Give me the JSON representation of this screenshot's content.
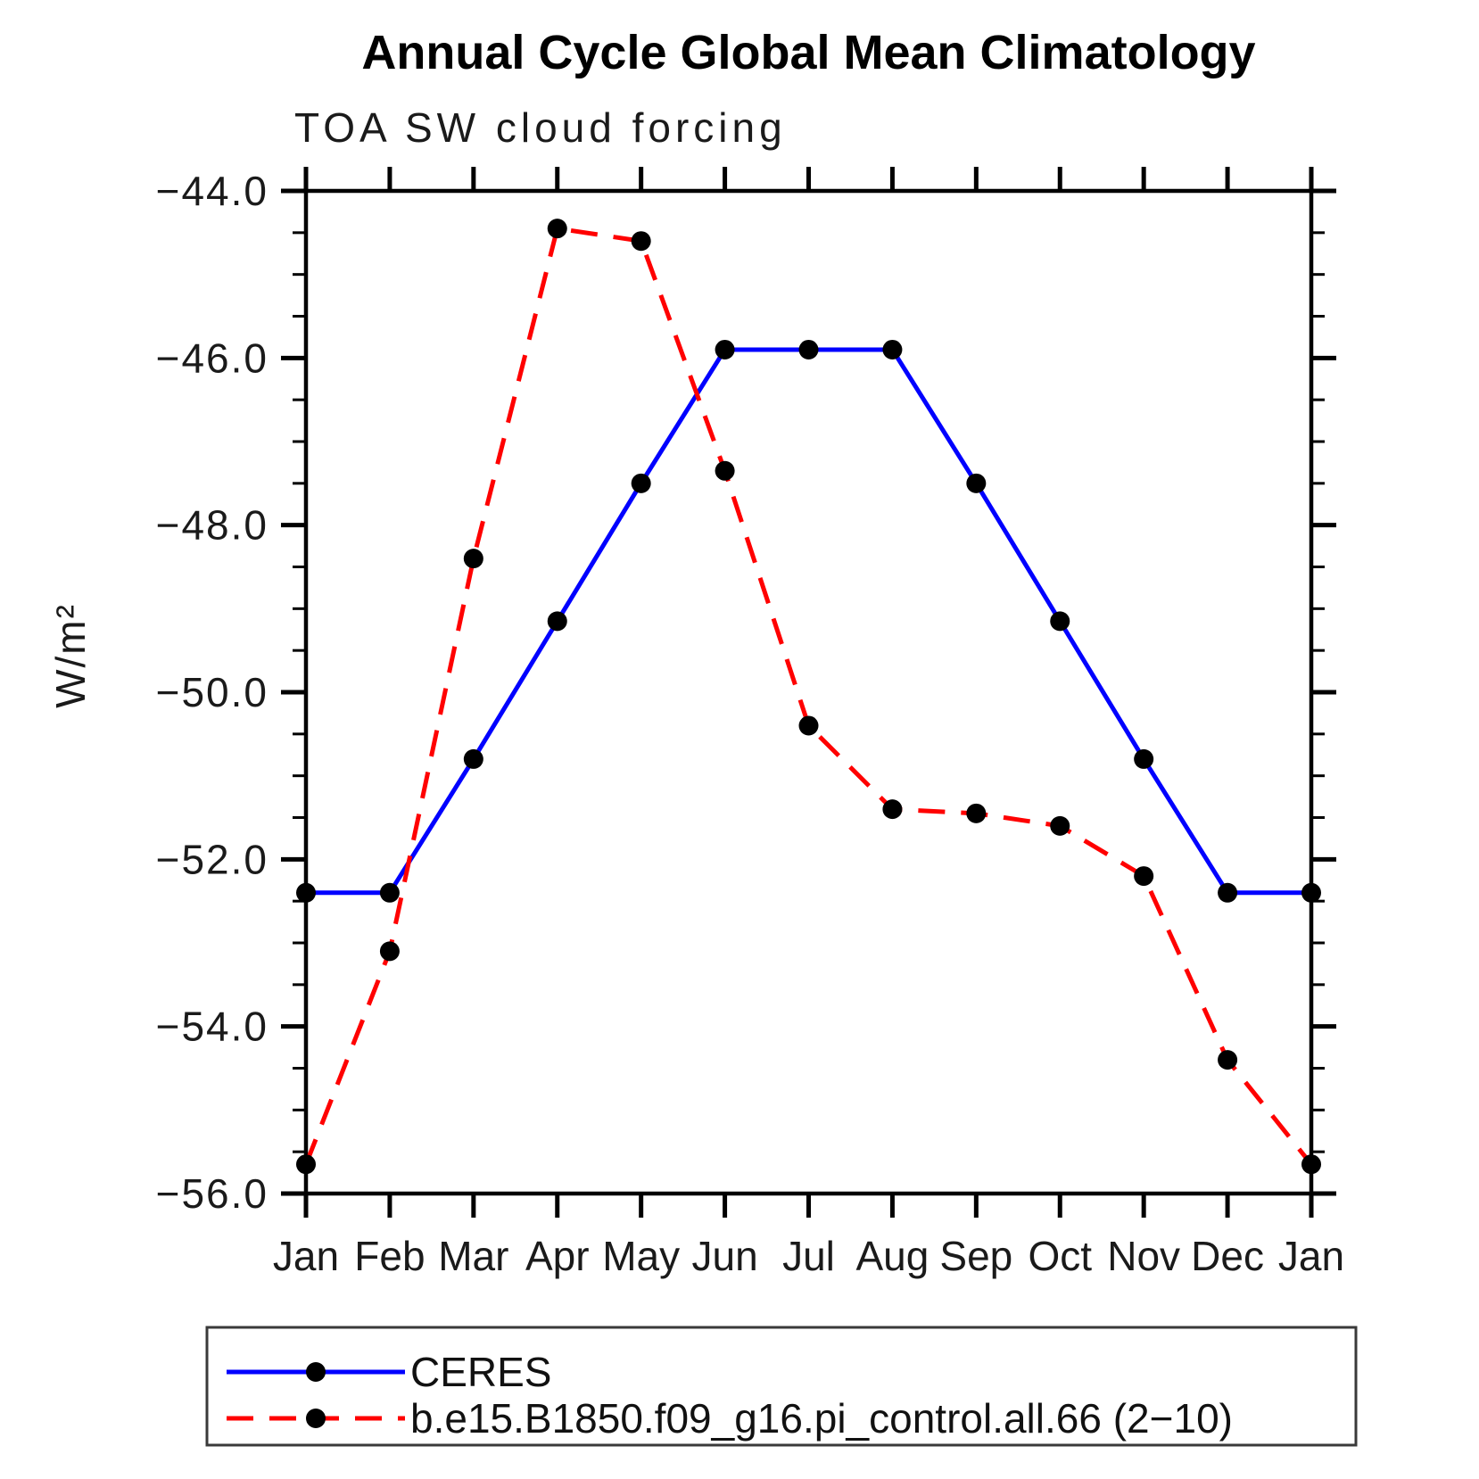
{
  "page": {
    "background": "#ffffff",
    "frame_color": "#000000",
    "tick_label_color": "#1a1a1a",
    "legend_border_color": "#3a3a3a"
  },
  "chart_data": {
    "type": "line",
    "title": "Annual Cycle Global Mean Climatology",
    "subtitle": "TOA SW cloud forcing",
    "ylabel": "W/m²",
    "xlabel": "",
    "categories": [
      "Jan",
      "Feb",
      "Mar",
      "Apr",
      "May",
      "Jun",
      "Jul",
      "Aug",
      "Sep",
      "Oct",
      "Nov",
      "Dec",
      "Jan"
    ],
    "ylim": [
      -56.0,
      -44.0
    ],
    "y_major_step": 2.0,
    "y_minor_step": 0.5,
    "y_tick_labels": [
      "−44.0",
      "−46.0",
      "−48.0",
      "−50.0",
      "−52.0",
      "−54.0",
      "−56.0"
    ],
    "grid": false,
    "legend_position": "bottom",
    "marker": {
      "shape": "circle",
      "color": "#000000",
      "radius": 11
    },
    "series": [
      {
        "name": "CERES",
        "color": "#0000ff",
        "style": "solid",
        "values": [
          -52.4,
          -52.4,
          -50.8,
          -49.15,
          -47.5,
          -45.9,
          -45.9,
          -45.9,
          -47.5,
          -49.15,
          -50.8,
          -52.4,
          -52.4
        ]
      },
      {
        "name": "b.e15.B1850.f09_g16.pi_control.all.66 (2−10)",
        "color": "#ff0000",
        "style": "dashed",
        "values": [
          -55.65,
          -53.1,
          -48.4,
          -44.45,
          -44.6,
          -47.35,
          -50.4,
          -51.4,
          -51.45,
          -51.6,
          -52.2,
          -54.4,
          -55.65
        ]
      }
    ]
  }
}
